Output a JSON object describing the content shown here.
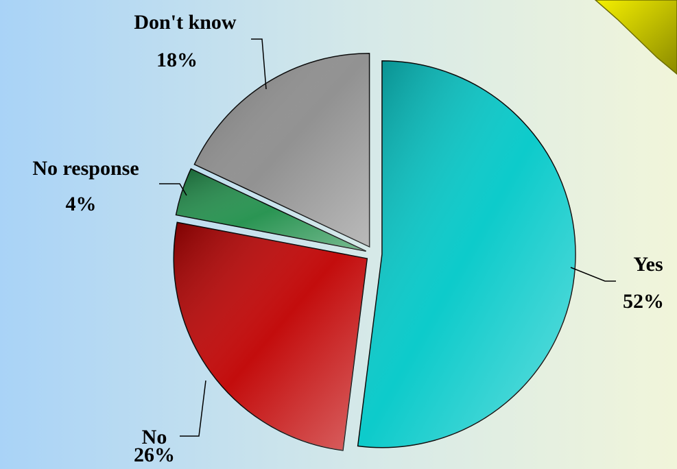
{
  "chart_data": {
    "type": "pie",
    "categories": [
      "Yes",
      "No",
      "No response",
      "Don't know"
    ],
    "values": [
      52,
      26,
      4,
      18
    ],
    "value_labels": [
      "52%",
      "26%",
      "4%",
      "18%"
    ],
    "colors": [
      "#00c8c8",
      "#c00000",
      "#1f8f4a",
      "#8c8c8c"
    ]
  }
}
